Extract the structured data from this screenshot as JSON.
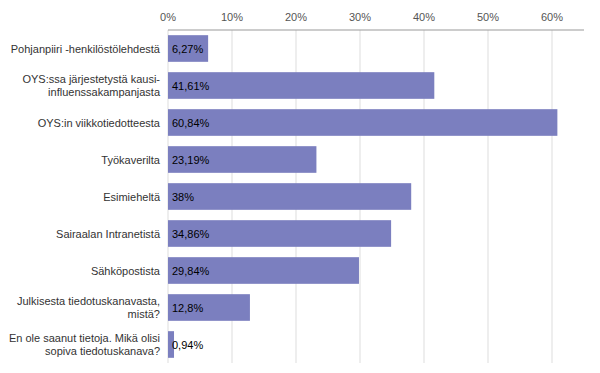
{
  "chart_data": {
    "type": "bar",
    "orientation": "horizontal",
    "categories": [
      "Pohjanpiiri -henkilöstölehdestä",
      "OYS:ssa järjestetystä kausi-\ninfluenssakampanjasta",
      "OYS:in viikkotiedotteesta",
      "Työkaverilta",
      "Esimieheltä",
      "Sairaalan Intranetistä",
      "Sähköpostista",
      "Julkisesta tiedotuskanavasta,\nmistä?",
      "En ole saanut tietoja. Mikä olisi\nsopiva tiedotuskanava?"
    ],
    "values": [
      6.27,
      41.61,
      60.84,
      23.19,
      38.0,
      34.86,
      29.84,
      12.8,
      0.94
    ],
    "value_labels": [
      "6,27%",
      "41,61%",
      "60,84%",
      "23,19%",
      "38%",
      "34,86%",
      "29,84%",
      "12,8%",
      "0,94%"
    ],
    "color": "#7b7fbf",
    "xlim": [
      0,
      65
    ],
    "xticks": [
      {
        "value": 0,
        "label": "0%"
      },
      {
        "value": 10,
        "label": "10%"
      },
      {
        "value": 20,
        "label": "20%"
      },
      {
        "value": 30,
        "label": "30%"
      },
      {
        "value": 40,
        "label": "40%"
      },
      {
        "value": 50,
        "label": "50%"
      },
      {
        "value": 60,
        "label": "60%"
      }
    ],
    "grid": true,
    "data_labels": true
  }
}
